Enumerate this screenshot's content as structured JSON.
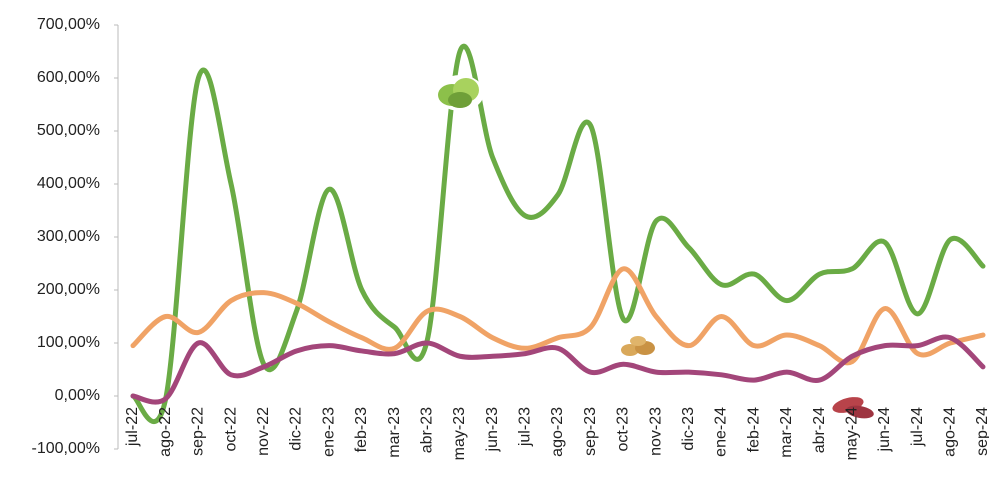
{
  "chart_data": {
    "type": "line",
    "categories": [
      "jul-22",
      "ago-22",
      "sep-22",
      "oct-22",
      "nov-22",
      "dic-22",
      "ene-23",
      "feb-23",
      "mar-23",
      "abr-23",
      "may-23",
      "jun-23",
      "jul-23",
      "ago-23",
      "sep-23",
      "oct-23",
      "nov-23",
      "dic-23",
      "ene-24",
      "feb-24",
      "mar-24",
      "abr-24",
      "may-24",
      "jun-24",
      "jul-24",
      "ago-24",
      "sep-24"
    ],
    "series": [
      {
        "color": "#6aab45",
        "values": [
          0,
          -5,
          600,
          400,
          60,
          160,
          390,
          200,
          130,
          105,
          650,
          450,
          340,
          380,
          510,
          145,
          330,
          280,
          210,
          230,
          180,
          230,
          240,
          290,
          155,
          295,
          245
        ]
      },
      {
        "color": "#f0a366",
        "values": [
          95,
          150,
          120,
          180,
          195,
          175,
          140,
          110,
          90,
          160,
          150,
          110,
          90,
          110,
          130,
          240,
          150,
          95,
          150,
          95,
          115,
          95,
          65,
          165,
          80,
          100,
          115
        ]
      },
      {
        "color": "#a3467a",
        "values": [
          0,
          -5,
          100,
          40,
          55,
          85,
          95,
          85,
          80,
          100,
          75,
          75,
          80,
          90,
          45,
          60,
          45,
          45,
          40,
          30,
          45,
          30,
          75,
          95,
          95,
          110,
          55
        ]
      }
    ],
    "ylim": [
      -100,
      700
    ],
    "yticks": [
      {
        "value": -100,
        "label": "-100,00%"
      },
      {
        "value": 0,
        "label": "0,00%"
      },
      {
        "value": 100,
        "label": "100,00%"
      },
      {
        "value": 200,
        "label": "200,00%"
      },
      {
        "value": 300,
        "label": "300,00%"
      },
      {
        "value": 400,
        "label": "400,00%"
      },
      {
        "value": 500,
        "label": "500,00%"
      },
      {
        "value": 600,
        "label": "600,00%"
      },
      {
        "value": 700,
        "label": "700,00%"
      }
    ],
    "grid": false
  }
}
